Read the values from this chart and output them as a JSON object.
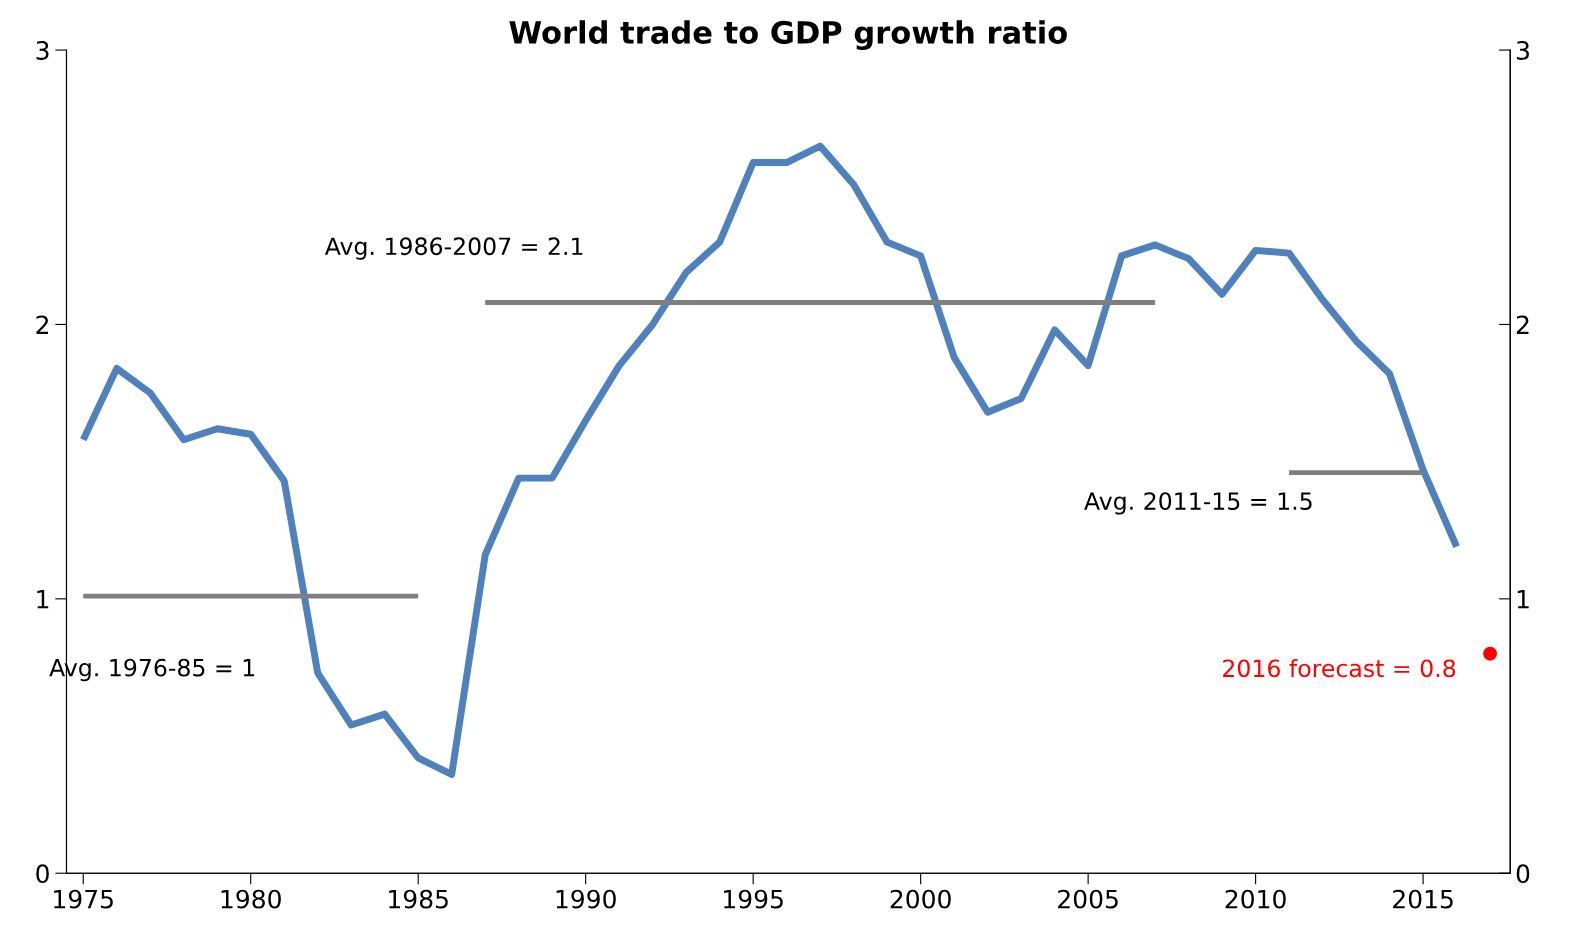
{
  "chart_data": {
    "type": "line",
    "title": "World trade to GDP growth ratio",
    "x": [
      1975,
      1976,
      1977,
      1978,
      1979,
      1980,
      1981,
      1982,
      1983,
      1984,
      1985,
      1986,
      1987,
      1988,
      1989,
      1990,
      1991,
      1992,
      1993,
      1994,
      1995,
      1996,
      1997,
      1998,
      1999,
      2000,
      2001,
      2002,
      2003,
      2004,
      2005,
      2006,
      2007,
      2008,
      2009,
      2010,
      2011,
      2012,
      2013,
      2014,
      2015,
      2016
    ],
    "series": [
      {
        "color": "#4f81bd",
        "values": [
          1.58,
          1.84,
          1.75,
          1.58,
          1.62,
          1.6,
          1.43,
          0.73,
          0.54,
          0.58,
          0.42,
          0.36,
          1.16,
          1.44,
          1.44,
          1.65,
          1.85,
          2.0,
          2.19,
          2.3,
          2.59,
          2.59,
          2.65,
          2.51,
          2.3,
          2.25,
          1.88,
          1.68,
          1.73,
          1.98,
          1.85,
          2.25,
          2.29,
          2.24,
          2.11,
          2.27,
          2.26,
          2.09,
          1.94,
          1.82,
          1.47,
          1.19
        ]
      },
      {
        "type": "line",
        "name": "Avg. 1976-85 = 1",
        "color": "#7f7f7f",
        "x": [
          1975,
          1985
        ],
        "values": [
          1.01,
          1.01
        ]
      },
      {
        "type": "line",
        "name": "Avg. 1986-2007 = 2.1",
        "color": "#7f7f7f",
        "x": [
          1987,
          2007
        ],
        "values": [
          2.08,
          2.08
        ]
      },
      {
        "type": "line",
        "name": "Avg. 2011-15 = 1.5",
        "color": "#7f7f7f",
        "x": [
          2011,
          2015
        ],
        "values": [
          1.46,
          1.46
        ]
      },
      {
        "type": "scatter",
        "name": "2016 forecast = 0.8",
        "color": "#ff0000",
        "x": [
          2017
        ],
        "values": [
          0.8
        ]
      }
    ],
    "xlim": [
      1974.5,
      2017.6
    ],
    "xticks": [
      1975,
      1980,
      1985,
      1990,
      1995,
      2000,
      2005,
      2010,
      2015
    ],
    "ylim": [
      0,
      3
    ],
    "yticks": [
      0,
      1,
      2,
      3
    ],
    "y2lim": [
      0,
      3
    ],
    "y2ticks": [
      0,
      1,
      2,
      3
    ],
    "grid": false,
    "legend": false,
    "line_style": "solid"
  }
}
